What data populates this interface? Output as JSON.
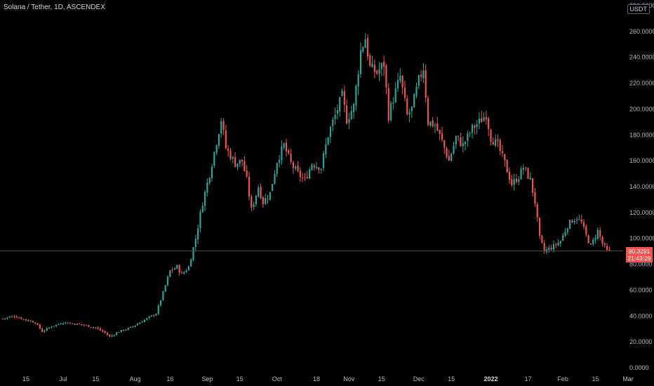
{
  "title": "Solana / Tether, 1D, ASCENDEX",
  "currency_label": "USDT",
  "price_tag": {
    "price": "90.3291",
    "countdown": "21:43:29"
  },
  "colors": {
    "up": "#26a69a",
    "down": "#ef5350",
    "background": "#000000",
    "axis_text": "#b2b5be",
    "price_line": "#8b2b2b"
  },
  "chart_data": {
    "type": "candlestick",
    "title": "Solana / Tether, 1D, ASCENDEX",
    "ylim": [
      0,
      280
    ],
    "y_ticks": [
      "0.0000",
      "20.0000",
      "40.0000",
      "60.0000",
      "80.0000",
      "100.0000",
      "120.0000",
      "140.0000",
      "160.0000",
      "180.0000",
      "200.0000",
      "220.0000",
      "240.0000",
      "260.0000",
      "280.0000"
    ],
    "x_ticks": [
      {
        "label": "15",
        "bold": false,
        "date": "2021-06-15"
      },
      {
        "label": "Jul",
        "bold": false,
        "date": "2021-07-01"
      },
      {
        "label": "15",
        "bold": false,
        "date": "2021-07-15"
      },
      {
        "label": "Aug",
        "bold": false,
        "date": "2021-08-01"
      },
      {
        "label": "16",
        "bold": false,
        "date": "2021-08-16"
      },
      {
        "label": "Sep",
        "bold": false,
        "date": "2021-09-01"
      },
      {
        "label": "15",
        "bold": false,
        "date": "2021-09-15"
      },
      {
        "label": "Oct",
        "bold": false,
        "date": "2021-10-01"
      },
      {
        "label": "18",
        "bold": false,
        "date": "2021-10-18"
      },
      {
        "label": "Nov",
        "bold": false,
        "date": "2021-11-01"
      },
      {
        "label": "15",
        "bold": false,
        "date": "2021-11-15"
      },
      {
        "label": "Dec",
        "bold": false,
        "date": "2021-12-01"
      },
      {
        "label": "15",
        "bold": false,
        "date": "2021-12-15"
      },
      {
        "label": "2022",
        "bold": true,
        "date": "2022-01-01"
      },
      {
        "label": "17",
        "bold": false,
        "date": "2022-01-17"
      },
      {
        "label": "Feb",
        "bold": false,
        "date": "2022-02-01"
      },
      {
        "label": "15",
        "bold": false,
        "date": "2022-02-15"
      },
      {
        "label": "Mar",
        "bold": false,
        "date": "2022-03-01"
      }
    ],
    "current_price": 90.3291,
    "close_path": [
      [
        "2021-06-05",
        38
      ],
      [
        "2021-06-10",
        40
      ],
      [
        "2021-06-15",
        37
      ],
      [
        "2021-06-19",
        35
      ],
      [
        "2021-06-22",
        28
      ],
      [
        "2021-06-26",
        32
      ],
      [
        "2021-07-01",
        35
      ],
      [
        "2021-07-06",
        34
      ],
      [
        "2021-07-10",
        33
      ],
      [
        "2021-07-15",
        31
      ],
      [
        "2021-07-19",
        27
      ],
      [
        "2021-07-21",
        24
      ],
      [
        "2021-07-25",
        28
      ],
      [
        "2021-07-30",
        31
      ],
      [
        "2021-08-03",
        35
      ],
      [
        "2021-08-06",
        38
      ],
      [
        "2021-08-10",
        42
      ],
      [
        "2021-08-13",
        58
      ],
      [
        "2021-08-16",
        75
      ],
      [
        "2021-08-19",
        78
      ],
      [
        "2021-08-21",
        72
      ],
      [
        "2021-08-24",
        78
      ],
      [
        "2021-08-27",
        100
      ],
      [
        "2021-08-30",
        128
      ],
      [
        "2021-09-02",
        150
      ],
      [
        "2021-09-05",
        175
      ],
      [
        "2021-09-07",
        192
      ],
      [
        "2021-09-09",
        170
      ],
      [
        "2021-09-13",
        158
      ],
      [
        "2021-09-16",
        160
      ],
      [
        "2021-09-18",
        145
      ],
      [
        "2021-09-20",
        122
      ],
      [
        "2021-09-23",
        140
      ],
      [
        "2021-09-25",
        128
      ],
      [
        "2021-09-28",
        135
      ],
      [
        "2021-10-01",
        160
      ],
      [
        "2021-10-04",
        172
      ],
      [
        "2021-10-07",
        158
      ],
      [
        "2021-10-10",
        150
      ],
      [
        "2021-10-13",
        145
      ],
      [
        "2021-10-16",
        158
      ],
      [
        "2021-10-20",
        155
      ],
      [
        "2021-10-23",
        180
      ],
      [
        "2021-10-26",
        195
      ],
      [
        "2021-10-29",
        210
      ],
      [
        "2021-10-31",
        192
      ],
      [
        "2021-11-03",
        202
      ],
      [
        "2021-11-06",
        245
      ],
      [
        "2021-11-08",
        255
      ],
      [
        "2021-11-10",
        232
      ],
      [
        "2021-11-13",
        228
      ],
      [
        "2021-11-16",
        235
      ],
      [
        "2021-11-18",
        195
      ],
      [
        "2021-11-20",
        208
      ],
      [
        "2021-11-23",
        225
      ],
      [
        "2021-11-26",
        195
      ],
      [
        "2021-11-28",
        200
      ],
      [
        "2021-12-01",
        222
      ],
      [
        "2021-12-03",
        232
      ],
      [
        "2021-12-05",
        190
      ],
      [
        "2021-12-08",
        188
      ],
      [
        "2021-12-11",
        175
      ],
      [
        "2021-12-14",
        160
      ],
      [
        "2021-12-17",
        178
      ],
      [
        "2021-12-20",
        172
      ],
      [
        "2021-12-24",
        185
      ],
      [
        "2021-12-27",
        190
      ],
      [
        "2021-12-30",
        196
      ],
      [
        "2022-01-01",
        178
      ],
      [
        "2022-01-04",
        172
      ],
      [
        "2022-01-07",
        158
      ],
      [
        "2022-01-10",
        142
      ],
      [
        "2022-01-13",
        148
      ],
      [
        "2022-01-15",
        155
      ],
      [
        "2022-01-18",
        145
      ],
      [
        "2022-01-20",
        128
      ],
      [
        "2022-01-22",
        100
      ],
      [
        "2022-01-24",
        90
      ],
      [
        "2022-01-26",
        92
      ],
      [
        "2022-01-28",
        94
      ],
      [
        "2022-01-31",
        98
      ],
      [
        "2022-02-03",
        110
      ],
      [
        "2022-02-05",
        114
      ],
      [
        "2022-02-07",
        116
      ],
      [
        "2022-02-09",
        112
      ],
      [
        "2022-02-11",
        102
      ],
      [
        "2022-02-13",
        94
      ],
      [
        "2022-02-16",
        106
      ],
      [
        "2022-02-18",
        96
      ],
      [
        "2022-02-20",
        90
      ],
      [
        "2022-02-21",
        90
      ]
    ]
  }
}
